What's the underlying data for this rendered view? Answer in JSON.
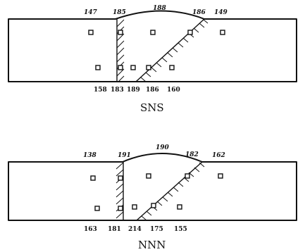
{
  "diagrams": [
    {
      "caption": "SNS",
      "top_labels": [
        "147",
        "185",
        "188",
        "186",
        "149"
      ],
      "bottom_labels": [
        "158",
        "183",
        "189",
        "186",
        "160"
      ]
    },
    {
      "caption": "NNN",
      "top_labels": [
        "138",
        "191",
        "190",
        "182",
        "162"
      ],
      "bottom_labels": [
        "163",
        "181",
        "214",
        "175",
        "155"
      ]
    }
  ]
}
